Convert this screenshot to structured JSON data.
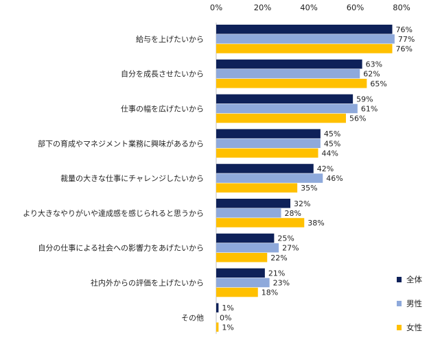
{
  "chart_data": {
    "type": "bar",
    "orientation": "horizontal",
    "title": "",
    "xlabel": "",
    "ylabel": "",
    "xlim": [
      0,
      80
    ],
    "x_ticks": [
      "0%",
      "20%",
      "40%",
      "60%",
      "80%"
    ],
    "legend_position": "bottom-right",
    "grid": false,
    "categories": [
      "給与を上げたいから",
      "自分を成長させたいから",
      "仕事の幅を広げたいから",
      "部下の育成やマネジメント業務に興味があるから",
      "裁量の大きな仕事にチャレンジしたいから",
      "より大きなやりがいや達成感を感じられると思うから",
      "自分の仕事による社会への影響力をあげたいから",
      "社内外からの評価を上げたいから",
      "その他"
    ],
    "series": [
      {
        "name": "全体",
        "color": "#0e2159",
        "values": [
          76,
          63,
          59,
          45,
          42,
          32,
          25,
          21,
          1
        ]
      },
      {
        "name": "男性",
        "color": "#8ea9db",
        "values": [
          77,
          62,
          61,
          45,
          46,
          28,
          27,
          23,
          0
        ]
      },
      {
        "name": "女性",
        "color": "#ffc000",
        "values": [
          76,
          65,
          56,
          44,
          35,
          38,
          22,
          18,
          1
        ]
      }
    ]
  }
}
